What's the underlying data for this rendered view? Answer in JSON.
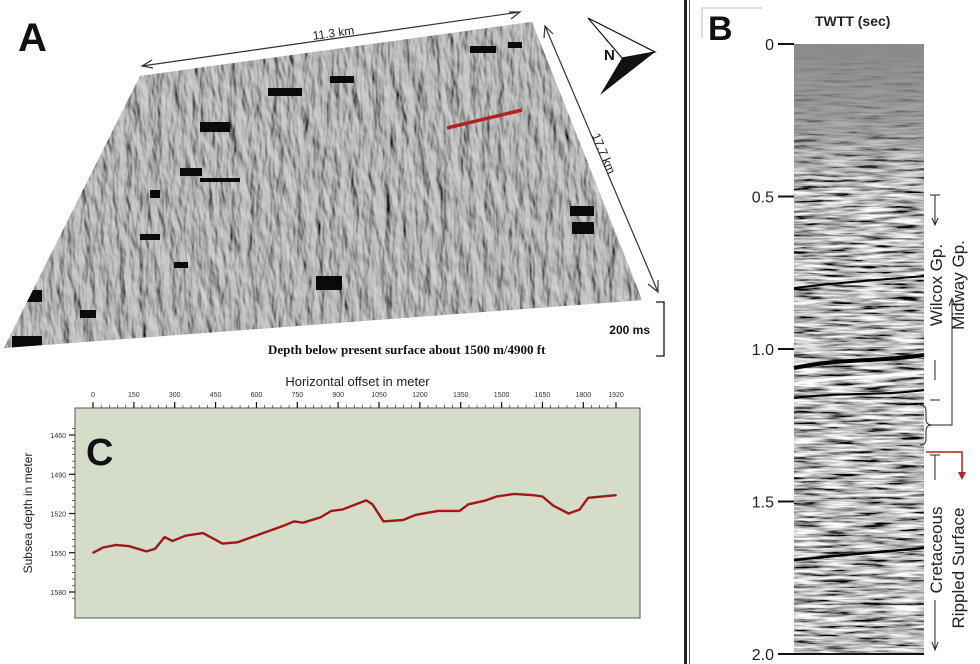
{
  "panel_a": {
    "letter": "A",
    "width_label": "11.3 km",
    "length_label": "17.7 km",
    "north_label": "N",
    "scale_label": "200 ms",
    "caption": "Depth below present surface about 1500 m/4900 ft",
    "profile_line_color": "#b22222"
  },
  "panel_b": {
    "letter": "B",
    "axis_title": "TWTT (sec)",
    "ticks": [
      "0",
      "0.5",
      "1.0",
      "1.5",
      "2.0"
    ],
    "tick_values": [
      0,
      0.5,
      1.0,
      1.5,
      2.0
    ],
    "labels": {
      "wilcox": "Wilcox Gp.",
      "midway": "Midway Gp.",
      "cretaceous": "Cretaceous",
      "rippled": "Rippled Surface"
    },
    "arrow_color": "#b22222"
  },
  "panel_c": {
    "letter": "C"
  },
  "chart_data": {
    "type": "line",
    "title": "",
    "xlabel": "Horizontal offset in meter",
    "ylabel": "Subsea depth in meter",
    "xlim": [
      0,
      1920
    ],
    "ylim": [
      1580,
      1460
    ],
    "y_inverted": true,
    "x_ticks": [
      0,
      150,
      300,
      450,
      600,
      750,
      900,
      1050,
      1200,
      1350,
      1500,
      1650,
      1800,
      1920
    ],
    "y_ticks": [
      1460,
      1490,
      1520,
      1550,
      1580
    ],
    "x_axis_position": "top",
    "background": "#d5dcc8",
    "line_color": "#a01818",
    "series": [
      {
        "x": [
          0,
          37,
          85,
          133,
          196,
          228,
          263,
          292,
          340,
          404,
          475,
          531,
          611,
          691,
          739,
          771,
          835,
          875,
          915,
          1003,
          1026,
          1066,
          1138,
          1186,
          1266,
          1346,
          1378,
          1442,
          1482,
          1546,
          1618,
          1650,
          1690,
          1746,
          1786,
          1818,
          1920
        ],
        "y": [
          1550,
          1546,
          1544,
          1545,
          1549,
          1547,
          1538,
          1541,
          1537,
          1535,
          1543,
          1542,
          1536,
          1530,
          1526,
          1527,
          1523,
          1518,
          1517,
          1510,
          1513,
          1526,
          1525,
          1521,
          1518,
          1518,
          1513,
          1510,
          1507,
          1505,
          1506,
          1507,
          1514,
          1520,
          1517,
          1508,
          1506
        ]
      }
    ]
  }
}
